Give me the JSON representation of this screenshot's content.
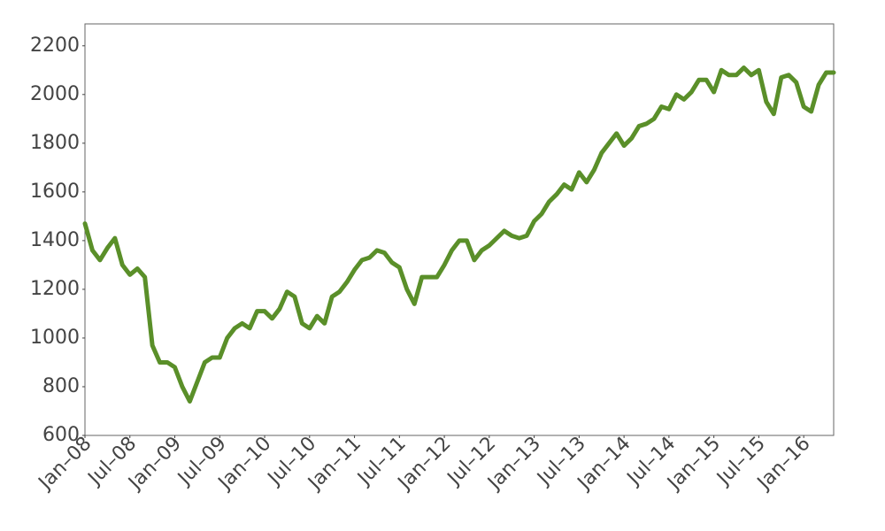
{
  "chart_data": {
    "type": "line",
    "x": [
      "2008-01",
      "2008-02",
      "2008-03",
      "2008-04",
      "2008-05",
      "2008-06",
      "2008-07",
      "2008-08",
      "2008-09",
      "2008-10",
      "2008-11",
      "2008-12",
      "2009-01",
      "2009-02",
      "2009-03",
      "2009-04",
      "2009-05",
      "2009-06",
      "2009-07",
      "2009-08",
      "2009-09",
      "2009-10",
      "2009-11",
      "2009-12",
      "2010-01",
      "2010-02",
      "2010-03",
      "2010-04",
      "2010-05",
      "2010-06",
      "2010-07",
      "2010-08",
      "2010-09",
      "2010-10",
      "2010-11",
      "2010-12",
      "2011-01",
      "2011-02",
      "2011-03",
      "2011-04",
      "2011-05",
      "2011-06",
      "2011-07",
      "2011-08",
      "2011-09",
      "2011-10",
      "2011-11",
      "2011-12",
      "2012-01",
      "2012-02",
      "2012-03",
      "2012-04",
      "2012-05",
      "2012-06",
      "2012-07",
      "2012-08",
      "2012-09",
      "2012-10",
      "2012-11",
      "2012-12",
      "2013-01",
      "2013-02",
      "2013-03",
      "2013-04",
      "2013-05",
      "2013-06",
      "2013-07",
      "2013-08",
      "2013-09",
      "2013-10",
      "2013-11",
      "2013-12",
      "2014-01",
      "2014-02",
      "2014-03",
      "2014-04",
      "2014-05",
      "2014-06",
      "2014-07",
      "2014-08",
      "2014-09",
      "2014-10",
      "2014-11",
      "2014-12",
      "2015-01",
      "2015-02",
      "2015-03",
      "2015-04",
      "2015-05",
      "2015-06",
      "2015-07",
      "2015-08",
      "2015-09",
      "2015-10",
      "2015-11",
      "2015-12",
      "2016-01",
      "2016-02",
      "2016-03",
      "2016-04",
      "2016-05"
    ],
    "series": [
      {
        "color": "#5a8f29",
        "values": [
          1470,
          1360,
          1320,
          1370,
          1410,
          1300,
          1260,
          1285,
          1250,
          970,
          900,
          900,
          880,
          800,
          740,
          820,
          900,
          920,
          920,
          1000,
          1040,
          1060,
          1040,
          1110,
          1110,
          1080,
          1120,
          1190,
          1170,
          1060,
          1040,
          1090,
          1060,
          1170,
          1190,
          1230,
          1280,
          1320,
          1330,
          1360,
          1350,
          1310,
          1290,
          1200,
          1140,
          1250,
          1250,
          1250,
          1300,
          1360,
          1400,
          1400,
          1320,
          1360,
          1380,
          1410,
          1440,
          1420,
          1410,
          1420,
          1480,
          1510,
          1560,
          1590,
          1630,
          1610,
          1680,
          1640,
          1690,
          1760,
          1800,
          1840,
          1790,
          1820,
          1870,
          1880,
          1900,
          1950,
          1940,
          2000,
          1980,
          2010,
          2060,
          2060,
          2010,
          2100,
          2080,
          2080,
          2110,
          2080,
          2100,
          1970,
          1920,
          2070,
          2080,
          2050,
          1950,
          1930,
          2040,
          2090,
          2090
        ]
      }
    ],
    "xlim": [
      "2008-01",
      "2016-05"
    ],
    "xticks": [
      {
        "value": "2008-01",
        "label": "Jan–08"
      },
      {
        "value": "2008-07",
        "label": "Jul–08"
      },
      {
        "value": "2009-01",
        "label": "Jan–09"
      },
      {
        "value": "2009-07",
        "label": "Jul–09"
      },
      {
        "value": "2010-01",
        "label": "Jan–10"
      },
      {
        "value": "2010-07",
        "label": "Jul–10"
      },
      {
        "value": "2011-01",
        "label": "Jan–11"
      },
      {
        "value": "2011-07",
        "label": "Jul–11"
      },
      {
        "value": "2012-01",
        "label": "Jan–12"
      },
      {
        "value": "2012-07",
        "label": "Jul–12"
      },
      {
        "value": "2013-01",
        "label": "Jan–13"
      },
      {
        "value": "2013-07",
        "label": "Jul–13"
      },
      {
        "value": "2014-01",
        "label": "Jan–14"
      },
      {
        "value": "2014-07",
        "label": "Jul–14"
      },
      {
        "value": "2015-01",
        "label": "Jan–15"
      },
      {
        "value": "2015-07",
        "label": "Jul–15"
      },
      {
        "value": "2016-01",
        "label": "Jan–16"
      }
    ],
    "ylim": [
      600,
      2290
    ],
    "yticks": [
      600,
      800,
      1000,
      1200,
      1400,
      1600,
      1800,
      2000,
      2200
    ],
    "grid": false
  }
}
